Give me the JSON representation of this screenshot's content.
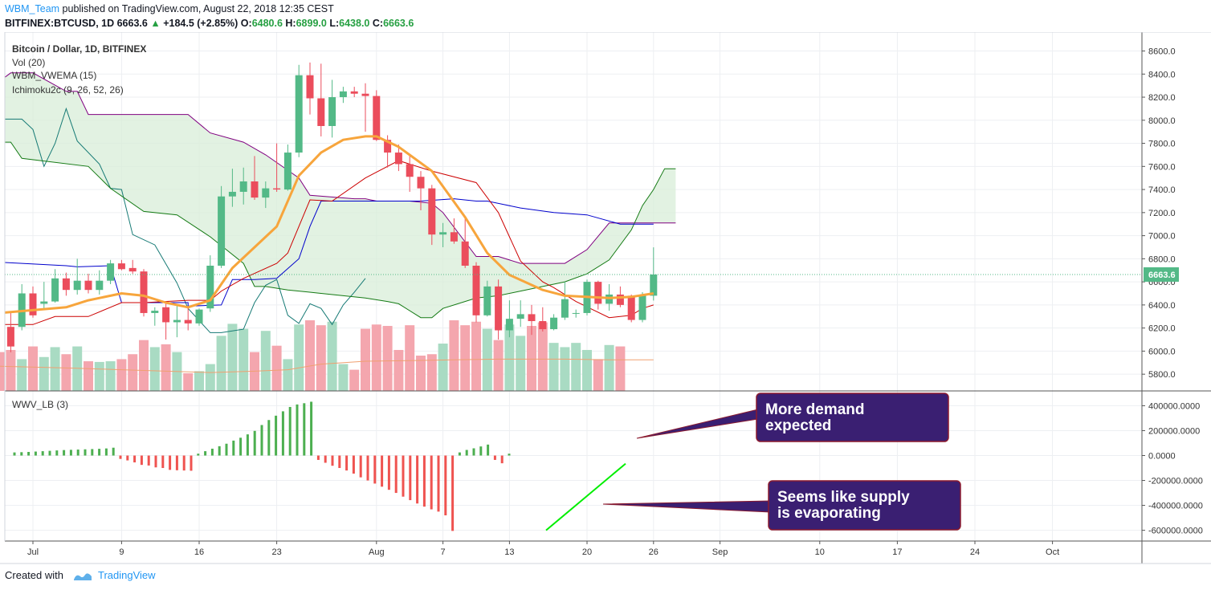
{
  "header": {
    "author": "WBM_Team",
    "published_text": " published on TradingView.com, August 22, 2018 12:35 CEST",
    "symbol": "BITFINEX:BTCUSD, 1D",
    "last": "6663.6",
    "arrow": "▲",
    "change": "+184.5 (+2.85%)",
    "o_label": "O:",
    "o_value": "6480.6",
    "h_label": "H:",
    "h_value": "6899.0",
    "l_label": "L:",
    "l_value": "6438.0",
    "c_label": "C:",
    "c_value": "6663.6"
  },
  "legend": {
    "title": "Bitcoin / Dollar, 1D, BITFINEX",
    "vol": "Vol (20)",
    "vwema": "WBM_VWEMA (15)",
    "ichimoku": "Ichimoku2c (9, 26, 52, 26)",
    "wwv": "WWV_LB (3)"
  },
  "callouts": {
    "demand": [
      "More demand",
      "expected"
    ],
    "supply": [
      "Seems like supply",
      "is evaporating"
    ]
  },
  "footer": {
    "created_with": "Created with",
    "brand": "TradingView"
  },
  "colors": {
    "up": "#53b987",
    "down": "#eb4d5c",
    "vol_up": "#a9dbc3",
    "vol_down": "#f4a6ae",
    "vwema": "#f7a53c",
    "vol_ma": "#f0a070",
    "conversion": "#0000cc",
    "base": "#cc0000",
    "span_a": "#147a14",
    "span_b": "#800080",
    "lagging": "#167a75",
    "cloud_fill": "#d8eed8",
    "osc_up": "#4caf50",
    "osc_down": "#ef5350",
    "trendline": "#00ee00",
    "callout_bg": "#3a1f72",
    "callout_border": "#8b1a2e",
    "price_badge": "#53b987"
  },
  "chart_data": {
    "type": "candlestick",
    "title": "Bitcoin / Dollar, 1D, BITFINEX",
    "x_ticks": [
      {
        "label": "Jul",
        "x": 0
      },
      {
        "label": "9",
        "x": 8
      },
      {
        "label": "16",
        "x": 15
      },
      {
        "label": "23",
        "x": 22
      },
      {
        "label": "Aug",
        "x": 31
      },
      {
        "label": "7",
        "x": 37
      },
      {
        "label": "13",
        "x": 43
      },
      {
        "label": "20",
        "x": 50
      },
      {
        "label": "26",
        "x": 56
      },
      {
        "label": "Sep",
        "x": 62
      },
      {
        "label": "10",
        "x": 71
      },
      {
        "label": "17",
        "x": 78
      },
      {
        "label": "24",
        "x": 85
      },
      {
        "label": "Oct",
        "x": 92
      }
    ],
    "price_ticks": [
      "8600.0",
      "8400.0",
      "8200.0",
      "8000.0",
      "7800.0",
      "7600.0",
      "7400.0",
      "7200.0",
      "7000.0",
      "6800.0",
      "6600.0",
      "6400.0",
      "6200.0",
      "6000.0",
      "5800.0"
    ],
    "osc_ticks": [
      "400000.0000",
      "200000.0000",
      "0.0000",
      "-200000.0000",
      "-400000.0000",
      "-600000.0000"
    ],
    "current_price": "6663.6",
    "candles": [
      {
        "x": -3,
        "o": 6380,
        "h": 6560,
        "l": 6150,
        "c": 6210
      },
      {
        "x": -2,
        "o": 6210,
        "h": 6330,
        "l": 5990,
        "c": 6040
      },
      {
        "x": -1,
        "o": 6210,
        "h": 6580,
        "l": 6180,
        "c": 6500
      },
      {
        "x": 0,
        "o": 6500,
        "h": 6560,
        "l": 6290,
        "c": 6310
      },
      {
        "x": 1,
        "o": 6410,
        "h": 6600,
        "l": 6370,
        "c": 6430
      },
      {
        "x": 2,
        "o": 6430,
        "h": 6710,
        "l": 6420,
        "c": 6630
      },
      {
        "x": 3,
        "o": 6630,
        "h": 6680,
        "l": 6480,
        "c": 6530
      },
      {
        "x": 4,
        "o": 6530,
        "h": 6800,
        "l": 6490,
        "c": 6610
      },
      {
        "x": 5,
        "o": 6610,
        "h": 6670,
        "l": 6500,
        "c": 6530
      },
      {
        "x": 6,
        "o": 6530,
        "h": 6700,
        "l": 6490,
        "c": 6610
      },
      {
        "x": 7,
        "o": 6610,
        "h": 6790,
        "l": 6580,
        "c": 6760
      },
      {
        "x": 8,
        "o": 6760,
        "h": 6790,
        "l": 6700,
        "c": 6710
      },
      {
        "x": 9,
        "o": 6720,
        "h": 6790,
        "l": 6670,
        "c": 6690
      },
      {
        "x": 10,
        "o": 6690,
        "h": 6710,
        "l": 6300,
        "c": 6330
      },
      {
        "x": 11,
        "o": 6330,
        "h": 6380,
        "l": 6220,
        "c": 6350
      },
      {
        "x": 12,
        "o": 6380,
        "h": 6420,
        "l": 6100,
        "c": 6250
      },
      {
        "x": 13,
        "o": 6250,
        "h": 6390,
        "l": 6120,
        "c": 6270
      },
      {
        "x": 14,
        "o": 6270,
        "h": 6390,
        "l": 6180,
        "c": 6240
      },
      {
        "x": 15,
        "o": 6240,
        "h": 6370,
        "l": 6220,
        "c": 6360
      },
      {
        "x": 16,
        "o": 6370,
        "h": 6830,
        "l": 6340,
        "c": 6740
      },
      {
        "x": 17,
        "o": 6740,
        "h": 7430,
        "l": 6720,
        "c": 7340
      },
      {
        "x": 18,
        "o": 7340,
        "h": 7580,
        "l": 7250,
        "c": 7380
      },
      {
        "x": 19,
        "o": 7380,
        "h": 7590,
        "l": 7270,
        "c": 7470
      },
      {
        "x": 20,
        "o": 7470,
        "h": 7690,
        "l": 7310,
        "c": 7330
      },
      {
        "x": 21,
        "o": 7330,
        "h": 7470,
        "l": 7240,
        "c": 7410
      },
      {
        "x": 22,
        "o": 7410,
        "h": 7800,
        "l": 7380,
        "c": 7400
      },
      {
        "x": 23,
        "o": 7400,
        "h": 7790,
        "l": 7390,
        "c": 7720
      },
      {
        "x": 24,
        "o": 7720,
        "h": 8480,
        "l": 7680,
        "c": 8390
      },
      {
        "x": 25,
        "o": 8390,
        "h": 8500,
        "l": 8050,
        "c": 8190
      },
      {
        "x": 26,
        "o": 8190,
        "h": 8490,
        "l": 7860,
        "c": 7950
      },
      {
        "x": 27,
        "o": 7950,
        "h": 8350,
        "l": 7850,
        "c": 8200
      },
      {
        "x": 28,
        "o": 8200,
        "h": 8290,
        "l": 8150,
        "c": 8250
      },
      {
        "x": 29,
        "o": 8250,
        "h": 8290,
        "l": 8200,
        "c": 8230
      },
      {
        "x": 30,
        "o": 8230,
        "h": 8320,
        "l": 7900,
        "c": 8210
      },
      {
        "x": 31,
        "o": 8210,
        "h": 8260,
        "l": 7820,
        "c": 7830
      },
      {
        "x": 32,
        "o": 7830,
        "h": 7870,
        "l": 7590,
        "c": 7720
      },
      {
        "x": 33,
        "o": 7720,
        "h": 7790,
        "l": 7560,
        "c": 7620
      },
      {
        "x": 34,
        "o": 7620,
        "h": 7690,
        "l": 7380,
        "c": 7510
      },
      {
        "x": 35,
        "o": 7510,
        "h": 7560,
        "l": 7220,
        "c": 7410
      },
      {
        "x": 36,
        "o": 7410,
        "h": 7440,
        "l": 6920,
        "c": 7010
      },
      {
        "x": 37,
        "o": 7010,
        "h": 7110,
        "l": 6900,
        "c": 7030
      },
      {
        "x": 38,
        "o": 7030,
        "h": 7150,
        "l": 6930,
        "c": 6950
      },
      {
        "x": 39,
        "o": 6950,
        "h": 7160,
        "l": 6720,
        "c": 6740
      },
      {
        "x": 40,
        "o": 6740,
        "h": 6770,
        "l": 6250,
        "c": 6310
      },
      {
        "x": 41,
        "o": 6310,
        "h": 6610,
        "l": 6300,
        "c": 6560
      },
      {
        "x": 42,
        "o": 6560,
        "h": 6620,
        "l": 6100,
        "c": 6180
      },
      {
        "x": 43,
        "o": 6180,
        "h": 6440,
        "l": 6120,
        "c": 6280
      },
      {
        "x": 44,
        "o": 6280,
        "h": 6440,
        "l": 6210,
        "c": 6320
      },
      {
        "x": 45,
        "o": 6320,
        "h": 6400,
        "l": 6140,
        "c": 6260
      },
      {
        "x": 46,
        "o": 6260,
        "h": 6380,
        "l": 6170,
        "c": 6190
      },
      {
        "x": 47,
        "o": 6190,
        "h": 6320,
        "l": 6180,
        "c": 6290
      },
      {
        "x": 48,
        "o": 6290,
        "h": 6600,
        "l": 6270,
        "c": 6450
      },
      {
        "x": 49,
        "o": 6330,
        "h": 6360,
        "l": 6290,
        "c": 6330
      },
      {
        "x": 50,
        "o": 6330,
        "h": 6620,
        "l": 6310,
        "c": 6600
      },
      {
        "x": 51,
        "o": 6600,
        "h": 6610,
        "l": 6360,
        "c": 6410
      },
      {
        "x": 52,
        "o": 6410,
        "h": 6580,
        "l": 6350,
        "c": 6490
      },
      {
        "x": 53,
        "o": 6490,
        "h": 6560,
        "l": 6380,
        "c": 6400
      },
      {
        "x": 54,
        "o": 6480,
        "h": 6490,
        "l": 6250,
        "c": 6270
      },
      {
        "x": 55,
        "o": 6270,
        "h": 6510,
        "l": 6250,
        "c": 6480
      },
      {
        "x": 56,
        "o": 6480,
        "h": 6899,
        "l": 6438,
        "c": 6663.6
      }
    ],
    "volume_rel": [
      0.55,
      0.58,
      0.45,
      0.63,
      0.48,
      0.62,
      0.52,
      0.63,
      0.42,
      0.41,
      0.42,
      0.45,
      0.52,
      0.72,
      0.62,
      0.66,
      0.55,
      0.25,
      0.28,
      0.38,
      0.78,
      0.95,
      0.88,
      0.55,
      0.85,
      0.64,
      0.45,
      0.94,
      1.0,
      0.93,
      0.98,
      0.38,
      0.3,
      0.88,
      0.94,
      0.92,
      0.58,
      0.93,
      0.5,
      0.52,
      0.67,
      1.0,
      0.93,
      0.98,
      0.88,
      0.72,
      0.94,
      0.78,
      0.92,
      0.97,
      0.68,
      0.62,
      0.68,
      0.58,
      0.45,
      0.65,
      0.63
    ],
    "vwema": [
      [
        -3,
        6330
      ],
      [
        3,
        6380
      ],
      [
        5,
        6440
      ],
      [
        8,
        6500
      ],
      [
        10,
        6480
      ],
      [
        12,
        6420
      ],
      [
        14,
        6380
      ],
      [
        16,
        6440
      ],
      [
        18,
        6720
      ],
      [
        20,
        6900
      ],
      [
        22,
        7080
      ],
      [
        24,
        7520
      ],
      [
        26,
        7720
      ],
      [
        28,
        7830
      ],
      [
        30,
        7860
      ],
      [
        31,
        7860
      ],
      [
        33,
        7770
      ],
      [
        36,
        7560
      ],
      [
        39,
        7160
      ],
      [
        41,
        6850
      ],
      [
        43,
        6660
      ],
      [
        46,
        6530
      ],
      [
        48,
        6480
      ],
      [
        52,
        6460
      ],
      [
        54,
        6470
      ],
      [
        56,
        6500
      ]
    ],
    "vol_ma_rel": [
      [
        -3,
        0.35
      ],
      [
        4,
        0.32
      ],
      [
        8,
        0.3
      ],
      [
        12,
        0.28
      ],
      [
        16,
        0.26
      ],
      [
        20,
        0.28
      ],
      [
        23,
        0.3
      ],
      [
        26,
        0.38
      ],
      [
        30,
        0.42
      ],
      [
        34,
        0.43
      ],
      [
        38,
        0.44
      ],
      [
        42,
        0.45
      ],
      [
        44,
        0.45
      ],
      [
        48,
        0.45
      ],
      [
        52,
        0.44
      ],
      [
        56,
        0.44
      ]
    ],
    "conversion": [
      [
        -3,
        6770
      ],
      [
        3,
        6740
      ],
      [
        4,
        6730
      ],
      [
        7,
        6740
      ],
      [
        8,
        6420
      ],
      [
        14,
        6420
      ],
      [
        14,
        6390
      ],
      [
        17,
        6400
      ],
      [
        18,
        6620
      ],
      [
        20,
        6620
      ],
      [
        22,
        6630
      ],
      [
        24,
        6800
      ],
      [
        25,
        7080
      ],
      [
        26,
        7300
      ],
      [
        30,
        7300
      ],
      [
        35,
        7300
      ],
      [
        38,
        7320
      ],
      [
        40,
        7300
      ],
      [
        41,
        7300
      ],
      [
        44,
        7240
      ],
      [
        47,
        7200
      ],
      [
        50,
        7180
      ],
      [
        53,
        7100
      ],
      [
        56,
        7100
      ]
    ],
    "base": [
      [
        -3,
        6230
      ],
      [
        0,
        6230
      ],
      [
        2,
        6300
      ],
      [
        5,
        6300
      ],
      [
        8,
        6420
      ],
      [
        10,
        6420
      ],
      [
        14,
        6440
      ],
      [
        16,
        6440
      ],
      [
        17,
        6520
      ],
      [
        19,
        6630
      ],
      [
        22,
        6760
      ],
      [
        23,
        6850
      ],
      [
        25,
        7310
      ],
      [
        27,
        7300
      ],
      [
        30,
        7500
      ],
      [
        33,
        7650
      ],
      [
        36,
        7560
      ],
      [
        40,
        7460
      ],
      [
        42,
        7200
      ],
      [
        44,
        6780
      ],
      [
        46,
        6600
      ],
      [
        47,
        6550
      ],
      [
        49,
        6430
      ],
      [
        52,
        6290
      ],
      [
        54,
        6310
      ],
      [
        55,
        6370
      ],
      [
        56,
        6400
      ]
    ],
    "span_a": [
      [
        -3,
        7810
      ],
      [
        -2,
        7810
      ],
      [
        -1,
        7670
      ],
      [
        5,
        7600
      ],
      [
        7,
        7410
      ],
      [
        10,
        7210
      ],
      [
        13,
        7180
      ],
      [
        16,
        6990
      ],
      [
        19,
        6760
      ],
      [
        20,
        6560
      ],
      [
        21,
        6560
      ],
      [
        23,
        6530
      ],
      [
        26,
        6500
      ],
      [
        30,
        6460
      ],
      [
        32,
        6430
      ],
      [
        33,
        6410
      ],
      [
        35,
        6290
      ],
      [
        36,
        6290
      ],
      [
        37,
        6370
      ],
      [
        40,
        6460
      ],
      [
        42,
        6480
      ],
      [
        44,
        6520
      ],
      [
        46,
        6560
      ],
      [
        48,
        6600
      ],
      [
        50,
        6670
      ],
      [
        52,
        6790
      ],
      [
        54,
        7050
      ],
      [
        55,
        7260
      ],
      [
        56,
        7400
      ],
      [
        57,
        7580
      ],
      [
        58,
        7580
      ]
    ],
    "span_b": [
      [
        -3,
        8340
      ],
      [
        -2,
        8410
      ],
      [
        0,
        8410
      ],
      [
        3,
        8250
      ],
      [
        4,
        8250
      ],
      [
        5,
        8050
      ],
      [
        14,
        8050
      ],
      [
        16,
        7890
      ],
      [
        19,
        7810
      ],
      [
        21,
        7700
      ],
      [
        24,
        7500
      ],
      [
        25,
        7350
      ],
      [
        29,
        7320
      ],
      [
        30,
        7320
      ],
      [
        31,
        7300
      ],
      [
        34,
        7300
      ],
      [
        36,
        7280
      ],
      [
        37,
        7200
      ],
      [
        40,
        6820
      ],
      [
        42,
        6820
      ],
      [
        44,
        6760
      ],
      [
        46,
        6760
      ],
      [
        48,
        6760
      ],
      [
        50,
        6880
      ],
      [
        52,
        7110
      ],
      [
        53,
        7110
      ],
      [
        55,
        7110
      ],
      [
        56,
        7110
      ],
      [
        57,
        7110
      ],
      [
        58,
        7110
      ]
    ],
    "lagging": [
      [
        -3,
        8010
      ],
      [
        -1,
        8010
      ],
      [
        0,
        7920
      ],
      [
        1,
        7600
      ],
      [
        2,
        7800
      ],
      [
        3,
        8100
      ],
      [
        4,
        7820
      ],
      [
        6,
        7620
      ],
      [
        7,
        7410
      ],
      [
        8,
        7400
      ],
      [
        9,
        7010
      ],
      [
        11,
        6920
      ],
      [
        13,
        6590
      ],
      [
        14,
        6370
      ],
      [
        16,
        6160
      ],
      [
        17,
        6160
      ],
      [
        19,
        6190
      ],
      [
        20,
        6420
      ],
      [
        21,
        6570
      ],
      [
        22,
        6620
      ],
      [
        23,
        6310
      ],
      [
        24,
        6240
      ],
      [
        25,
        6410
      ],
      [
        26,
        6370
      ],
      [
        27,
        6230
      ],
      [
        28,
        6400
      ],
      [
        29,
        6510
      ],
      [
        30,
        6630
      ]
    ],
    "wwv": [
      25000,
      27000,
      29000,
      32000,
      35000,
      38000,
      41000,
      44000,
      46000,
      48000,
      50000,
      52000,
      54000,
      57000,
      63000,
      -27000,
      -39000,
      -55000,
      -75000,
      -80000,
      -95000,
      -100000,
      -115000,
      -118000,
      -120000,
      -122000,
      15000,
      35000,
      55000,
      75000,
      95000,
      120000,
      143000,
      170000,
      198000,
      245000,
      285000,
      320000,
      355000,
      390000,
      410000,
      420000,
      432000,
      -35000,
      -58000,
      -82000,
      -100000,
      -120000,
      -145000,
      -175000,
      -200000,
      -225000,
      -250000,
      -275000,
      -300000,
      -330000,
      -358000,
      -385000,
      -410000,
      -432000,
      -450000,
      -480000,
      -605000,
      25000,
      45000,
      58000,
      73000,
      88000,
      -35000,
      -62000,
      15000
    ]
  }
}
